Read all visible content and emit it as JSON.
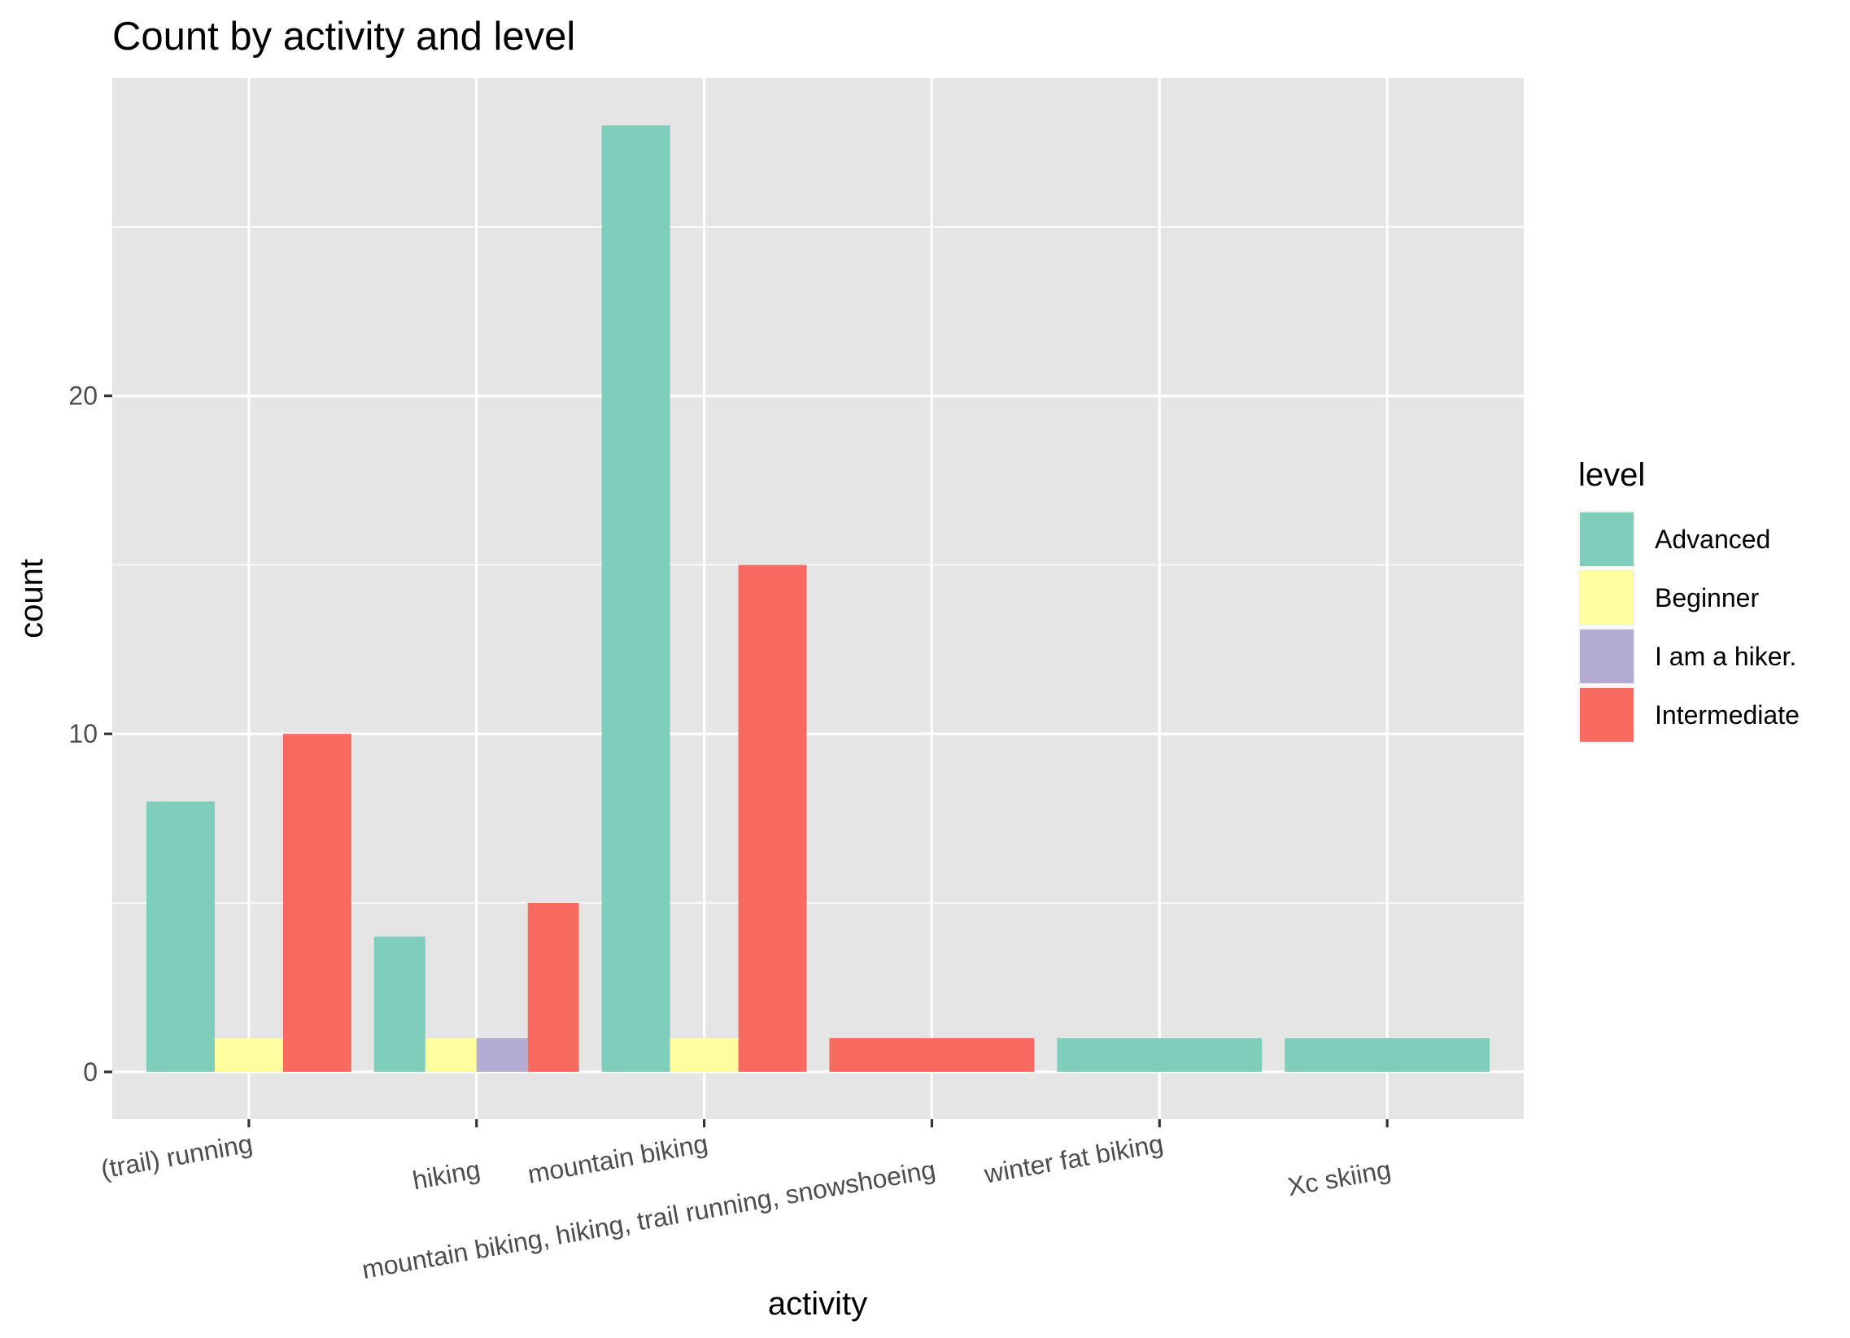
{
  "chart_data": {
    "type": "bar",
    "title": "Count by activity and level",
    "xlabel": "activity",
    "ylabel": "count",
    "categories": [
      "(trail) running",
      "hiking",
      "mountain biking",
      "mountain biking, hiking, trail running, snowshoeing",
      "winter fat biking",
      "Xc skiing"
    ],
    "series": [
      {
        "name": "Advanced",
        "color": "#7FCDBB",
        "values": [
          8,
          4,
          28,
          null,
          1,
          1
        ]
      },
      {
        "name": "Beginner",
        "color": "#FFFFA0",
        "values": [
          1,
          1,
          1,
          null,
          null,
          null
        ]
      },
      {
        "name": "I am a hiker.",
        "color": "#B3ABD2",
        "values": [
          null,
          1,
          null,
          null,
          null,
          null
        ]
      },
      {
        "name": "Intermediate",
        "color": "#F8695F",
        "values": [
          10,
          5,
          15,
          1,
          null,
          null
        ]
      }
    ],
    "ylim": [
      -1.4,
      29.4
    ],
    "yticks": [
      0,
      10,
      20
    ],
    "grid": true,
    "legend": {
      "title": "level",
      "position": "right"
    },
    "panel_background": "#E5E5E5"
  }
}
